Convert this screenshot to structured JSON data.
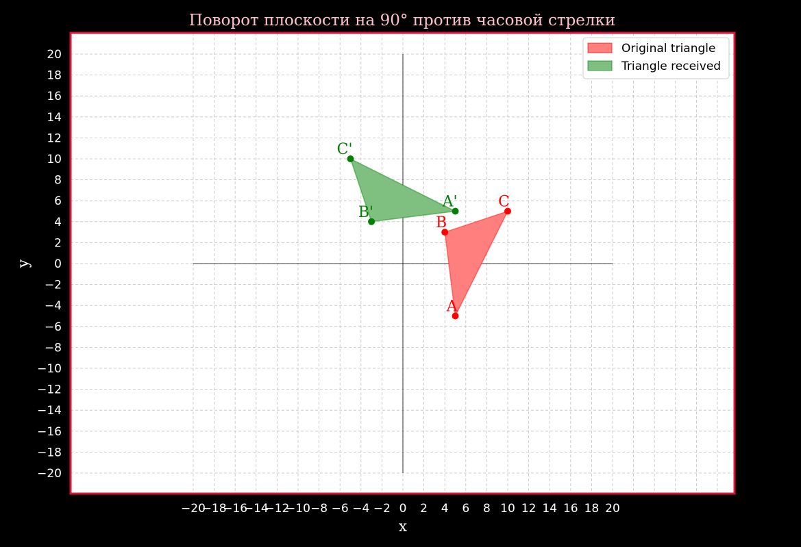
{
  "chart_data": {
    "type": "scatter",
    "title": "Поворот плоскости на 90° против часовой стрелки",
    "xlabel": "x",
    "ylabel": "y",
    "xlim": [
      -20,
      20
    ],
    "ylim": [
      -20,
      20
    ],
    "x_ticks": [
      -20,
      -18,
      -16,
      -14,
      -12,
      -10,
      -8,
      -6,
      -4,
      -2,
      0,
      2,
      4,
      6,
      8,
      10,
      12,
      14,
      16,
      18,
      20
    ],
    "y_ticks": [
      -20,
      -18,
      -16,
      -14,
      -12,
      -10,
      -8,
      -6,
      -4,
      -2,
      0,
      2,
      4,
      6,
      8,
      10,
      12,
      14,
      16,
      18,
      20
    ],
    "grid": true,
    "legend_position": "top-right",
    "series": [
      {
        "name": "Original triangle",
        "color": "#ff0000",
        "fill_color": "#ff7f7f",
        "points": [
          {
            "label": "A",
            "x": 5,
            "y": -5
          },
          {
            "label": "B",
            "x": 4,
            "y": 3
          },
          {
            "label": "C",
            "x": 10,
            "y": 5
          }
        ]
      },
      {
        "name": "Triangle received",
        "color": "#008000",
        "fill_color": "#7fbf7f",
        "points": [
          {
            "label": "A'",
            "x": 5,
            "y": 5
          },
          {
            "label": "B'",
            "x": -3,
            "y": 4
          },
          {
            "label": "C'",
            "x": -5,
            "y": 10
          }
        ]
      }
    ],
    "colors": {
      "background": "#000000",
      "plot_background": "#ffffff",
      "frame": "#dc143c",
      "title": "#ffc0cb",
      "ticks": "#ffffff",
      "grid": "#c0c0c0"
    }
  }
}
